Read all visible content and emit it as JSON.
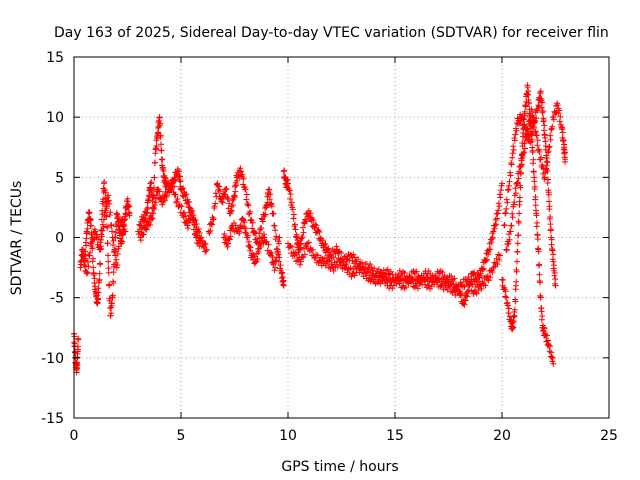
{
  "chart_data": {
    "type": "scatter",
    "title": "Day 163 of 2025, Sidereal Day-to-day VTEC variation (SDTVAR) for receiver flin",
    "xlabel": "GPS time / hours",
    "ylabel": "SDTVAR / TECUs",
    "xlim": [
      0,
      25
    ],
    "ylim": [
      -15,
      15
    ],
    "xticks": [
      0,
      5,
      10,
      15,
      20,
      25
    ],
    "yticks": [
      -15,
      -10,
      -5,
      0,
      5,
      10,
      15
    ],
    "xtick_labels": [
      "0",
      "5",
      "10",
      "15",
      "20",
      "25"
    ],
    "ytick_labels": [
      "-15",
      "-10",
      "-5",
      "0",
      "5",
      "10",
      "15"
    ],
    "grid": true,
    "marker": "+",
    "color": "#ff0000",
    "series": [
      {
        "name": "SDTVAR",
        "segments": [
          [
            [
              0.0,
              -8.0
            ],
            [
              0.05,
              -9.5
            ],
            [
              0.1,
              -11.0
            ],
            [
              0.15,
              -10.5
            ],
            [
              0.2,
              -8.5
            ]
          ],
          [
            [
              0.3,
              -2.5
            ],
            [
              0.4,
              -1.0
            ],
            [
              0.5,
              -2.0
            ],
            [
              0.6,
              0.5
            ],
            [
              0.7,
              2.0
            ],
            [
              0.8,
              1.0
            ],
            [
              0.9,
              -2.5
            ],
            [
              1.0,
              -4.5
            ],
            [
              1.1,
              -5.5
            ],
            [
              1.2,
              -3.0
            ],
            [
              1.3,
              1.5
            ],
            [
              1.4,
              4.5
            ],
            [
              1.5,
              3.0
            ],
            [
              1.6,
              -2.0
            ],
            [
              1.7,
              -6.5
            ],
            [
              1.8,
              -5.0
            ],
            [
              1.9,
              -1.0
            ],
            [
              2.0,
              2.0
            ],
            [
              2.1,
              1.0
            ],
            [
              2.2,
              -0.5
            ],
            [
              2.3,
              0.5
            ],
            [
              2.4,
              2.0
            ],
            [
              2.5,
              3.0
            ],
            [
              2.6,
              2.0
            ]
          ],
          [
            [
              0.4,
              -1.5
            ],
            [
              0.6,
              -3.0
            ],
            [
              0.8,
              -0.5
            ],
            [
              1.0,
              0.5
            ],
            [
              1.2,
              -1.0
            ],
            [
              1.4,
              1.5
            ],
            [
              1.6,
              3.5
            ],
            [
              1.8,
              0.0
            ],
            [
              2.0,
              -2.5
            ],
            [
              2.2,
              1.5
            ],
            [
              2.4,
              0.5
            ]
          ],
          [
            [
              3.0,
              0.5
            ],
            [
              3.2,
              1.5
            ],
            [
              3.4,
              2.0
            ],
            [
              3.5,
              3.5
            ],
            [
              3.6,
              4.5
            ],
            [
              3.7,
              2.5
            ],
            [
              3.8,
              7.0
            ],
            [
              3.9,
              8.5
            ],
            [
              4.0,
              10.0
            ],
            [
              4.1,
              6.5
            ],
            [
              4.2,
              5.0
            ],
            [
              4.3,
              4.5
            ],
            [
              4.5,
              4.0
            ],
            [
              4.7,
              5.0
            ],
            [
              4.9,
              5.5
            ],
            [
              5.0,
              4.0
            ],
            [
              5.2,
              3.5
            ],
            [
              5.4,
              2.5
            ],
            [
              5.6,
              1.5
            ],
            [
              5.8,
              0.5
            ],
            [
              6.0,
              -0.5
            ],
            [
              6.2,
              -1.0
            ]
          ],
          [
            [
              3.1,
              0.0
            ],
            [
              3.3,
              0.8
            ],
            [
              3.5,
              1.2
            ],
            [
              3.7,
              2.0
            ],
            [
              3.9,
              4.0
            ],
            [
              4.1,
              3.0
            ],
            [
              4.3,
              3.5
            ],
            [
              4.6,
              4.5
            ],
            [
              4.8,
              3.0
            ],
            [
              5.1,
              2.0
            ],
            [
              5.3,
              1.0
            ],
            [
              5.5,
              2.0
            ],
            [
              5.7,
              0.0
            ],
            [
              5.9,
              -0.5
            ]
          ],
          [
            [
              6.3,
              0.5
            ],
            [
              6.5,
              1.5
            ],
            [
              6.7,
              4.5
            ],
            [
              6.9,
              3.0
            ],
            [
              7.1,
              4.0
            ],
            [
              7.3,
              2.0
            ],
            [
              7.5,
              3.5
            ],
            [
              7.6,
              5.0
            ],
            [
              7.8,
              5.5
            ],
            [
              8.0,
              4.0
            ],
            [
              8.2,
              2.0
            ],
            [
              8.4,
              0.5
            ],
            [
              8.6,
              -0.5
            ],
            [
              8.8,
              1.5
            ],
            [
              9.0,
              2.5
            ],
            [
              9.1,
              4.0
            ],
            [
              9.3,
              2.0
            ],
            [
              9.5,
              -1.0
            ],
            [
              9.7,
              -3.0
            ],
            [
              9.8,
              -4.0
            ]
          ],
          [
            [
              7.0,
              0.0
            ],
            [
              7.2,
              -0.5
            ],
            [
              7.4,
              1.0
            ],
            [
              7.7,
              0.5
            ],
            [
              7.9,
              1.5
            ],
            [
              8.1,
              0.0
            ],
            [
              8.3,
              -1.5
            ],
            [
              8.5,
              -2.0
            ],
            [
              8.7,
              -0.5
            ],
            [
              8.9,
              0.0
            ],
            [
              9.2,
              -1.5
            ],
            [
              9.4,
              -2.5
            ],
            [
              9.6,
              0.0
            ]
          ],
          [
            [
              9.8,
              5.5
            ],
            [
              9.9,
              4.5
            ],
            [
              10.0,
              4.5
            ],
            [
              10.2,
              2.5
            ],
            [
              10.4,
              0.0
            ],
            [
              10.5,
              -1.0
            ],
            [
              10.6,
              -0.5
            ],
            [
              10.8,
              1.5
            ],
            [
              11.0,
              2.0
            ],
            [
              11.2,
              1.0
            ],
            [
              11.4,
              0.5
            ],
            [
              11.6,
              -0.5
            ],
            [
              11.8,
              -1.0
            ],
            [
              12.0,
              -1.5
            ],
            [
              12.3,
              -1.0
            ],
            [
              12.6,
              -2.0
            ],
            [
              12.9,
              -1.5
            ],
            [
              13.2,
              -2.0
            ],
            [
              13.5,
              -2.5
            ],
            [
              13.8,
              -2.5
            ],
            [
              14.1,
              -3.0
            ],
            [
              14.4,
              -3.0
            ],
            [
              14.7,
              -3.0
            ],
            [
              15.0,
              -3.5
            ],
            [
              15.3,
              -3.0
            ],
            [
              15.6,
              -3.5
            ],
            [
              15.9,
              -3.0
            ],
            [
              16.2,
              -3.5
            ],
            [
              16.5,
              -3.0
            ],
            [
              16.8,
              -3.5
            ],
            [
              17.1,
              -3.0
            ],
            [
              17.4,
              -3.5
            ],
            [
              17.7,
              -3.5
            ],
            [
              18.0,
              -4.5
            ],
            [
              18.2,
              -5.5
            ],
            [
              18.4,
              -4.5
            ],
            [
              18.6,
              -3.0
            ],
            [
              18.8,
              -3.5
            ],
            [
              19.0,
              -3.0
            ],
            [
              19.2,
              -2.0
            ],
            [
              19.4,
              -1.0
            ],
            [
              19.6,
              0.5
            ],
            [
              19.8,
              2.0
            ],
            [
              20.0,
              4.5
            ]
          ],
          [
            [
              10.0,
              -0.5
            ],
            [
              10.3,
              -1.5
            ],
            [
              10.6,
              -2.0
            ],
            [
              10.9,
              -0.5
            ],
            [
              11.2,
              -1.5
            ],
            [
              11.5,
              -2.0
            ],
            [
              11.8,
              -2.0
            ],
            [
              12.1,
              -2.5
            ],
            [
              12.4,
              -2.0
            ],
            [
              12.7,
              -2.5
            ],
            [
              13.0,
              -3.0
            ],
            [
              13.3,
              -2.5
            ],
            [
              13.6,
              -3.0
            ],
            [
              13.9,
              -3.5
            ],
            [
              14.2,
              -3.5
            ],
            [
              14.5,
              -3.5
            ],
            [
              14.8,
              -4.0
            ],
            [
              15.1,
              -3.5
            ],
            [
              15.4,
              -4.0
            ],
            [
              15.7,
              -3.5
            ],
            [
              16.0,
              -4.0
            ],
            [
              16.3,
              -3.5
            ],
            [
              16.6,
              -4.0
            ],
            [
              16.9,
              -3.5
            ],
            [
              17.2,
              -4.0
            ],
            [
              17.5,
              -4.0
            ],
            [
              17.8,
              -4.5
            ],
            [
              18.1,
              -4.0
            ],
            [
              18.4,
              -3.5
            ],
            [
              18.7,
              -4.5
            ],
            [
              19.0,
              -4.0
            ],
            [
              19.3,
              -3.5
            ],
            [
              19.6,
              -2.5
            ],
            [
              19.9,
              -1.5
            ]
          ],
          [
            [
              20.0,
              -3.5
            ],
            [
              20.2,
              -5.0
            ],
            [
              20.4,
              -7.0
            ],
            [
              20.5,
              -7.5
            ],
            [
              20.6,
              -6.0
            ],
            [
              20.7,
              -2.0
            ],
            [
              20.8,
              2.0
            ],
            [
              20.9,
              6.0
            ],
            [
              21.0,
              9.0
            ],
            [
              21.1,
              11.0
            ],
            [
              21.2,
              12.5
            ],
            [
              21.3,
              10.0
            ],
            [
              21.4,
              8.0
            ],
            [
              21.5,
              5.0
            ],
            [
              21.6,
              2.0
            ],
            [
              21.7,
              -1.0
            ],
            [
              21.8,
              -5.0
            ],
            [
              21.9,
              -7.5
            ],
            [
              22.0,
              -8.0
            ],
            [
              22.2,
              -9.0
            ],
            [
              22.4,
              -10.5
            ]
          ],
          [
            [
              20.1,
              1.0
            ],
            [
              20.3,
              4.0
            ],
            [
              20.5,
              7.0
            ],
            [
              20.7,
              9.5
            ],
            [
              20.9,
              10.0
            ],
            [
              21.1,
              9.0
            ],
            [
              21.3,
              8.0
            ],
            [
              21.5,
              9.5
            ],
            [
              21.7,
              11.0
            ],
            [
              21.8,
              12.0
            ],
            [
              21.9,
              10.5
            ],
            [
              22.0,
              8.5
            ],
            [
              22.1,
              6.0
            ],
            [
              22.2,
              3.0
            ],
            [
              22.3,
              0.0
            ],
            [
              22.4,
              -2.0
            ],
            [
              22.5,
              -4.0
            ]
          ],
          [
            [
              20.2,
              -1.0
            ],
            [
              20.4,
              0.5
            ],
            [
              20.6,
              3.5
            ],
            [
              20.8,
              5.5
            ],
            [
              21.0,
              7.0
            ],
            [
              21.2,
              9.0
            ],
            [
              21.4,
              10.5
            ],
            [
              21.6,
              8.5
            ],
            [
              21.8,
              6.5
            ],
            [
              22.0,
              5.0
            ],
            [
              22.2,
              7.5
            ],
            [
              22.4,
              10.0
            ],
            [
              22.6,
              11.0
            ],
            [
              22.8,
              9.0
            ],
            [
              22.9,
              7.5
            ],
            [
              22.95,
              6.5
            ]
          ]
        ]
      }
    ]
  }
}
